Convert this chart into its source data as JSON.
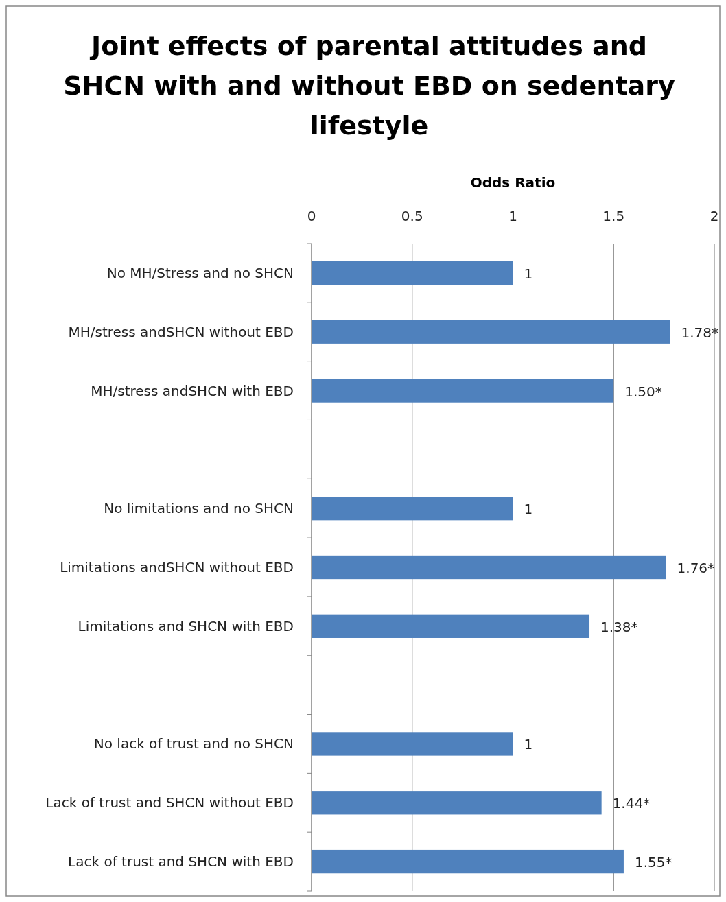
{
  "chart_data": {
    "type": "bar",
    "orientation": "horizontal",
    "title": "Joint effects of parental attitudes and SHCN with and without EBD on sedentary lifestyle",
    "xlabel": "Odds Ratio",
    "categories": [
      "No MH/Stress and no SHCN",
      "MH/stress andSHCN without EBD",
      "MH/stress andSHCN with EBD",
      null,
      "No limitations and no SHCN",
      "Limitations andSHCN without EBD",
      "Limitations and SHCN with EBD",
      null,
      "No lack of trust and no SHCN",
      "Lack of trust and SHCN without EBD",
      "Lack of trust and SHCN with EBD"
    ],
    "values": [
      1,
      1.78,
      1.5,
      null,
      1,
      1.76,
      1.38,
      null,
      1,
      1.44,
      1.55
    ],
    "value_labels": [
      "1",
      "1.78*",
      "1.50*",
      null,
      "1",
      "1.76*",
      "1.38*",
      null,
      "1",
      "1.44*",
      "1.55*"
    ],
    "color": "#4f81bd",
    "xlim": [
      0,
      2
    ],
    "xticks": [
      0,
      0.5,
      1,
      1.5,
      2
    ],
    "grid": "x"
  }
}
